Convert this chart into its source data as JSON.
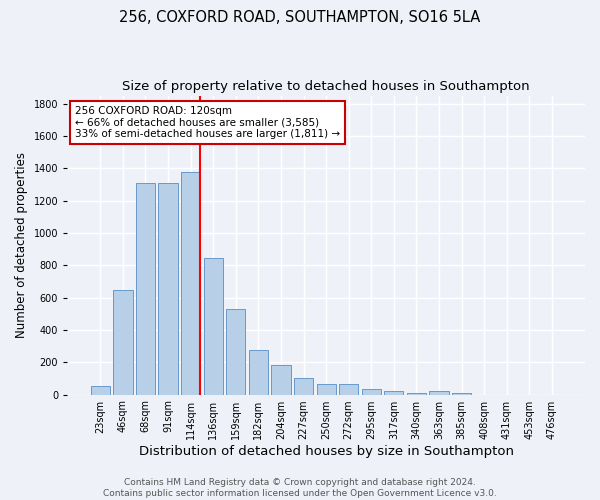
{
  "title": "256, COXFORD ROAD, SOUTHAMPTON, SO16 5LA",
  "subtitle": "Size of property relative to detached houses in Southampton",
  "xlabel": "Distribution of detached houses by size in Southampton",
  "ylabel": "Number of detached properties",
  "categories": [
    "23sqm",
    "46sqm",
    "68sqm",
    "91sqm",
    "114sqm",
    "136sqm",
    "159sqm",
    "182sqm",
    "204sqm",
    "227sqm",
    "250sqm",
    "272sqm",
    "295sqm",
    "317sqm",
    "340sqm",
    "363sqm",
    "385sqm",
    "408sqm",
    "431sqm",
    "453sqm",
    "476sqm"
  ],
  "values": [
    55,
    645,
    1310,
    1310,
    1375,
    845,
    530,
    275,
    185,
    105,
    65,
    65,
    35,
    25,
    10,
    25,
    10,
    0,
    0,
    0,
    0
  ],
  "bar_color": "#b8cfe8",
  "bar_edge_color": "#6699cc",
  "background_color": "#eef2f8",
  "grid_color": "#ffffff",
  "red_line_index": 4,
  "annotation_title": "256 COXFORD ROAD: 120sqm",
  "annotation_line1": "← 66% of detached houses are smaller (3,585)",
  "annotation_line2": "33% of semi-detached houses are larger (1,811) →",
  "annotation_box_color": "#ffffff",
  "annotation_border_color": "#cc0000",
  "footer_line1": "Contains HM Land Registry data © Crown copyright and database right 2024.",
  "footer_line2": "Contains public sector information licensed under the Open Government Licence v3.0.",
  "ylim": [
    0,
    1850
  ],
  "yticks": [
    0,
    200,
    400,
    600,
    800,
    1000,
    1200,
    1400,
    1600,
    1800
  ],
  "title_fontsize": 10.5,
  "subtitle_fontsize": 9.5,
  "xlabel_fontsize": 9.5,
  "ylabel_fontsize": 8.5,
  "tick_fontsize": 7,
  "footer_fontsize": 6.5,
  "annotation_fontsize": 7.5
}
